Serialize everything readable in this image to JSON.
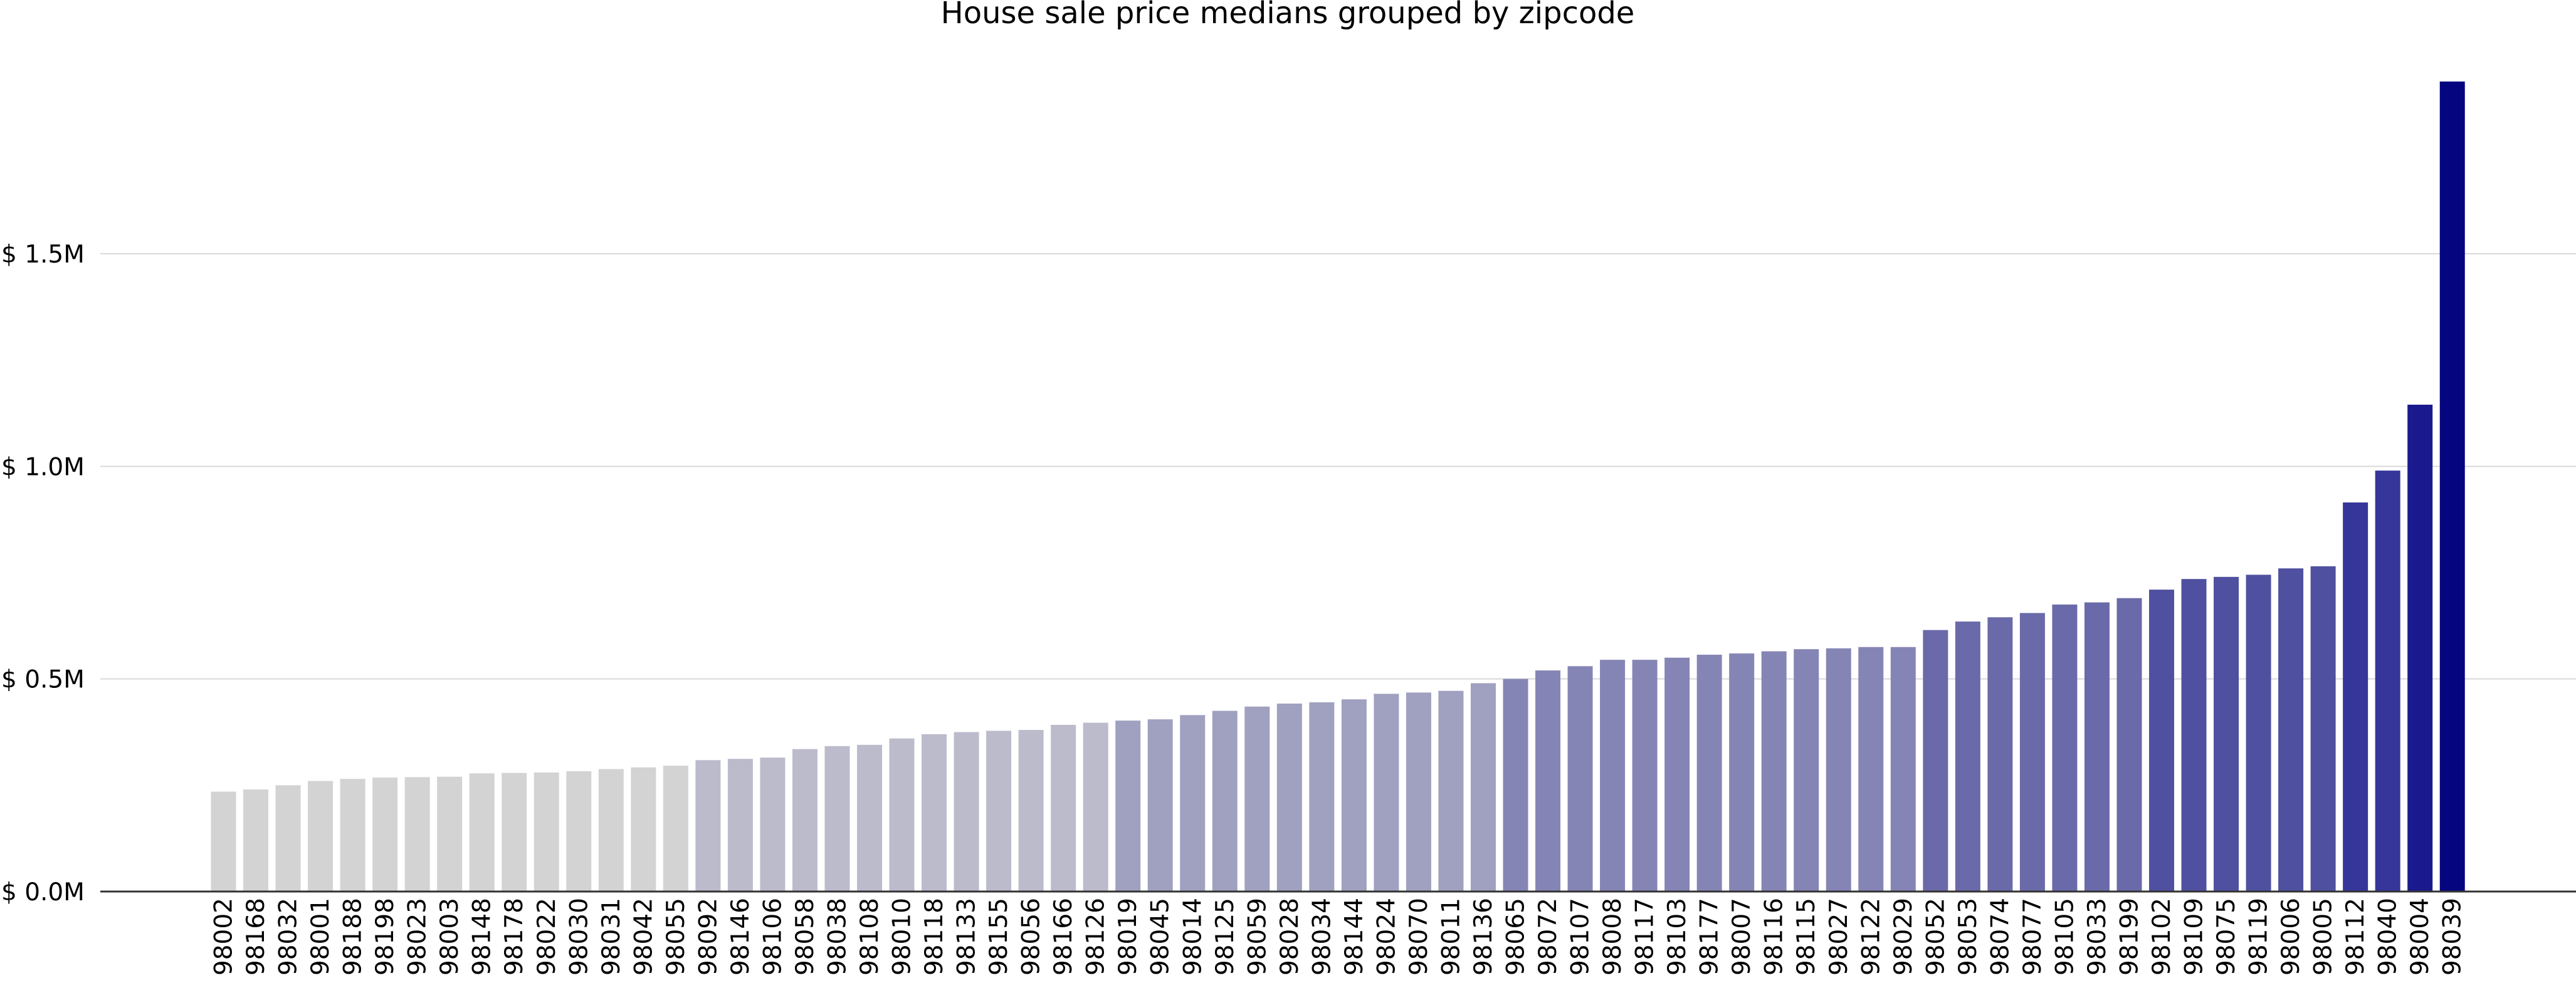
{
  "chart_data": {
    "type": "bar",
    "title": "House sale price medians grouped by zipcode",
    "xlabel": "",
    "ylabel": "",
    "ylim": [
      0,
      1.9
    ],
    "y_ticks": [
      {
        "value": 0.0,
        "label": "$ 0.0M"
      },
      {
        "value": 0.5,
        "label": "$ 0.5M"
      },
      {
        "value": 1.0,
        "label": "$ 1.0M"
      },
      {
        "value": 1.5,
        "label": "$ 1.5M"
      }
    ],
    "grid": "horizontal",
    "value_unit": "millions of dollars",
    "categories": [
      "98002",
      "98168",
      "98032",
      "98001",
      "98188",
      "98198",
      "98023",
      "98003",
      "98148",
      "98178",
      "98022",
      "98030",
      "98031",
      "98042",
      "98055",
      "98092",
      "98146",
      "98106",
      "98058",
      "98038",
      "98108",
      "98010",
      "98118",
      "98133",
      "98155",
      "98056",
      "98166",
      "98126",
      "98019",
      "98045",
      "98014",
      "98125",
      "98059",
      "98028",
      "98034",
      "98144",
      "98024",
      "98070",
      "98011",
      "98136",
      "98065",
      "98072",
      "98107",
      "98008",
      "98117",
      "98103",
      "98177",
      "98007",
      "98116",
      "98115",
      "98027",
      "98122",
      "98029",
      "98052",
      "98053",
      "98074",
      "98077",
      "98105",
      "98033",
      "98199",
      "98102",
      "98109",
      "98075",
      "98119",
      "98006",
      "98005",
      "98112",
      "98040",
      "98004",
      "98039"
    ],
    "values": [
      0.235,
      0.24,
      0.25,
      0.26,
      0.265,
      0.268,
      0.269,
      0.27,
      0.278,
      0.279,
      0.28,
      0.283,
      0.288,
      0.292,
      0.296,
      0.309,
      0.312,
      0.315,
      0.335,
      0.342,
      0.345,
      0.36,
      0.37,
      0.375,
      0.378,
      0.38,
      0.392,
      0.397,
      0.402,
      0.405,
      0.415,
      0.425,
      0.435,
      0.442,
      0.445,
      0.452,
      0.465,
      0.468,
      0.472,
      0.49,
      0.5,
      0.52,
      0.53,
      0.545,
      0.545,
      0.55,
      0.557,
      0.56,
      0.565,
      0.57,
      0.572,
      0.575,
      0.575,
      0.615,
      0.635,
      0.645,
      0.655,
      0.675,
      0.68,
      0.69,
      0.71,
      0.735,
      0.74,
      0.745,
      0.76,
      0.765,
      0.915,
      0.99,
      1.145,
      1.905
    ],
    "colors": [
      "#d3d3d3",
      "#d3d3d3",
      "#d3d3d3",
      "#d3d3d3",
      "#d3d3d3",
      "#d3d3d3",
      "#d3d3d3",
      "#d3d3d3",
      "#d3d3d3",
      "#d3d3d3",
      "#d3d3d3",
      "#d3d3d3",
      "#d3d3d3",
      "#d3d3d3",
      "#d3d3d3",
      "#bbbbcc",
      "#bbbbcc",
      "#bbbbcc",
      "#bbbbcc",
      "#bbbbcc",
      "#bbbbcc",
      "#bbbbcc",
      "#bbbbcc",
      "#bbbbcc",
      "#bbbbcc",
      "#bbbbcc",
      "#bbbbcc",
      "#bbbbcc",
      "#a0a0c0",
      "#a0a0c0",
      "#a0a0c0",
      "#a0a0c0",
      "#a0a0c0",
      "#a0a0c0",
      "#a0a0c0",
      "#a0a0c0",
      "#a0a0c0",
      "#a0a0c0",
      "#a0a0c0",
      "#a0a0c0",
      "#8585b5",
      "#8585b5",
      "#8585b5",
      "#8585b5",
      "#8585b5",
      "#8585b5",
      "#8585b5",
      "#8585b5",
      "#8585b5",
      "#8585b5",
      "#8585b5",
      "#8585b5",
      "#8585b5",
      "#6a6aaa",
      "#6a6aaa",
      "#6a6aaa",
      "#6a6aaa",
      "#6a6aaa",
      "#6a6aaa",
      "#6a6aaa",
      "#5050a0",
      "#5050a0",
      "#5050a0",
      "#5050a0",
      "#5050a0",
      "#5050a0",
      "#35359a",
      "#35359a",
      "#1a1a8e",
      "#050580"
    ]
  }
}
